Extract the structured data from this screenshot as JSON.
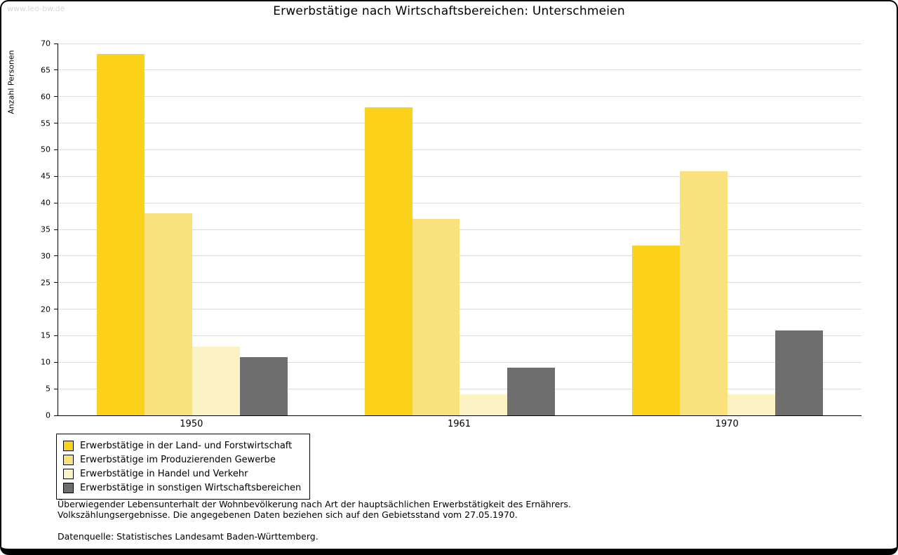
{
  "watermark": "www.leo-bw.de",
  "title": "Erwerbstätige nach Wirtschaftsbereichen: Unterschmeien",
  "chart_data": {
    "type": "bar",
    "categories": [
      "1950",
      "1961",
      "1970"
    ],
    "series": [
      {
        "name": "Erwerbstätige in der Land- und Forstwirtschaft",
        "color": "#FCD119",
        "values": [
          68,
          58,
          32
        ]
      },
      {
        "name": "Erwerbstätige im Produzierenden Gewerbe",
        "color": "#F9E27D",
        "values": [
          38,
          37,
          46
        ]
      },
      {
        "name": "Erwerbstätige in Handel und Verkehr",
        "color": "#FCF3C5",
        "values": [
          13,
          4,
          4
        ]
      },
      {
        "name": "Erwerbstätige in sonstigen Wirtschaftsbereichen",
        "color": "#6E6E6E",
        "values": [
          11,
          9,
          16
        ]
      }
    ],
    "ylabel": "Anzahl Personen",
    "ylim": [
      0,
      70
    ],
    "ytick_step": 5,
    "grid": true,
    "legend_position": "bottom-left"
  },
  "footnotes": {
    "line1": "Überwiegender Lebensunterhalt der Wohnbevölkerung nach Art der hauptsächlichen Erwerbstätigkeit des Ernährers.",
    "line2": "Volkszählungsergebnisse. Die angegebenen Daten beziehen sich auf den Gebietsstand vom 27.05.1970.",
    "source": "Datenquelle: Statistisches Landesamt Baden-Württemberg."
  }
}
